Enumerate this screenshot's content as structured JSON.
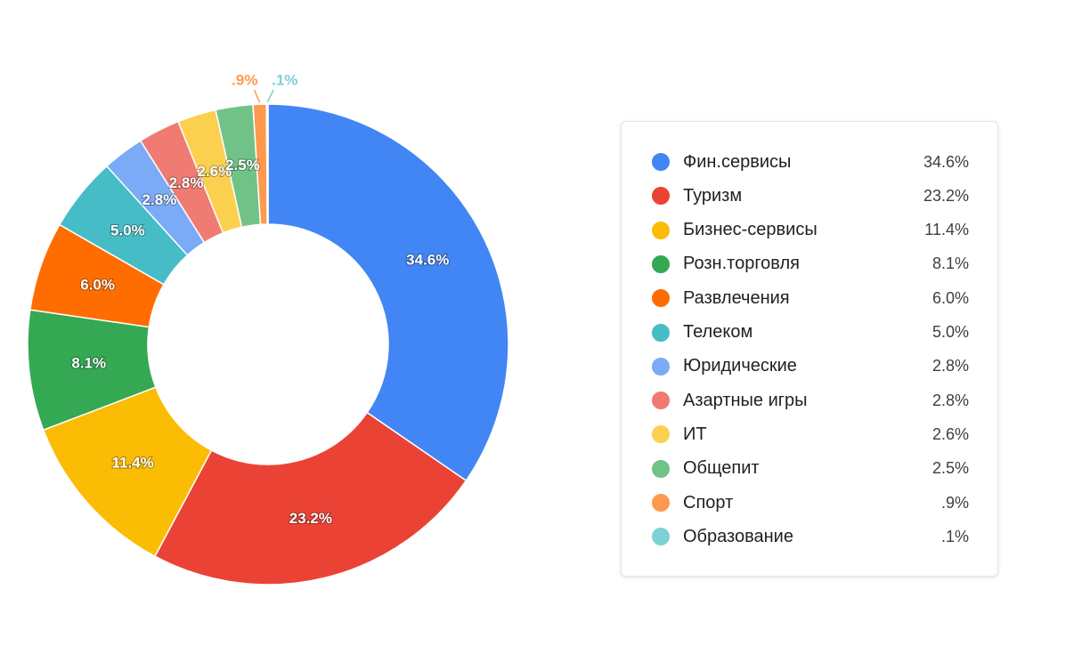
{
  "chart_data": {
    "type": "pie",
    "donut": true,
    "legend_position": "right",
    "slices": [
      {
        "name": "Фин.сервисы",
        "label": "34.6%",
        "value": 34.6,
        "color": "#4285F4"
      },
      {
        "name": "Туризм",
        "label": "23.2%",
        "value": 23.2,
        "color": "#EA4335"
      },
      {
        "name": "Бизнес-сервисы",
        "label": "11.4%",
        "value": 11.4,
        "color": "#FBBC04"
      },
      {
        "name": "Розн.торговля",
        "label": "8.1%",
        "value": 8.1,
        "color": "#34A853"
      },
      {
        "name": "Развлечения",
        "label": "6.0%",
        "value": 6.0,
        "color": "#FF6D01"
      },
      {
        "name": "Телеком",
        "label": "5.0%",
        "value": 5.0,
        "color": "#46BDC6"
      },
      {
        "name": "Юридические",
        "label": "2.8%",
        "value": 2.8,
        "color": "#7BAAF7"
      },
      {
        "name": "Азартные игры",
        "label": "2.8%",
        "value": 2.8,
        "color": "#F07B72"
      },
      {
        "name": "ИТ",
        "label": "2.6%",
        "value": 2.6,
        "color": "#FCD04F"
      },
      {
        "name": "Общепит",
        "label": "2.5%",
        "value": 2.5,
        "color": "#71C287"
      },
      {
        "name": "Спорт",
        "label": ".9%",
        "value": 0.9,
        "color": "#FF994D"
      },
      {
        "name": "Образование",
        "label": ".1%",
        "value": 0.1,
        "color": "#7ED1D7"
      }
    ]
  }
}
